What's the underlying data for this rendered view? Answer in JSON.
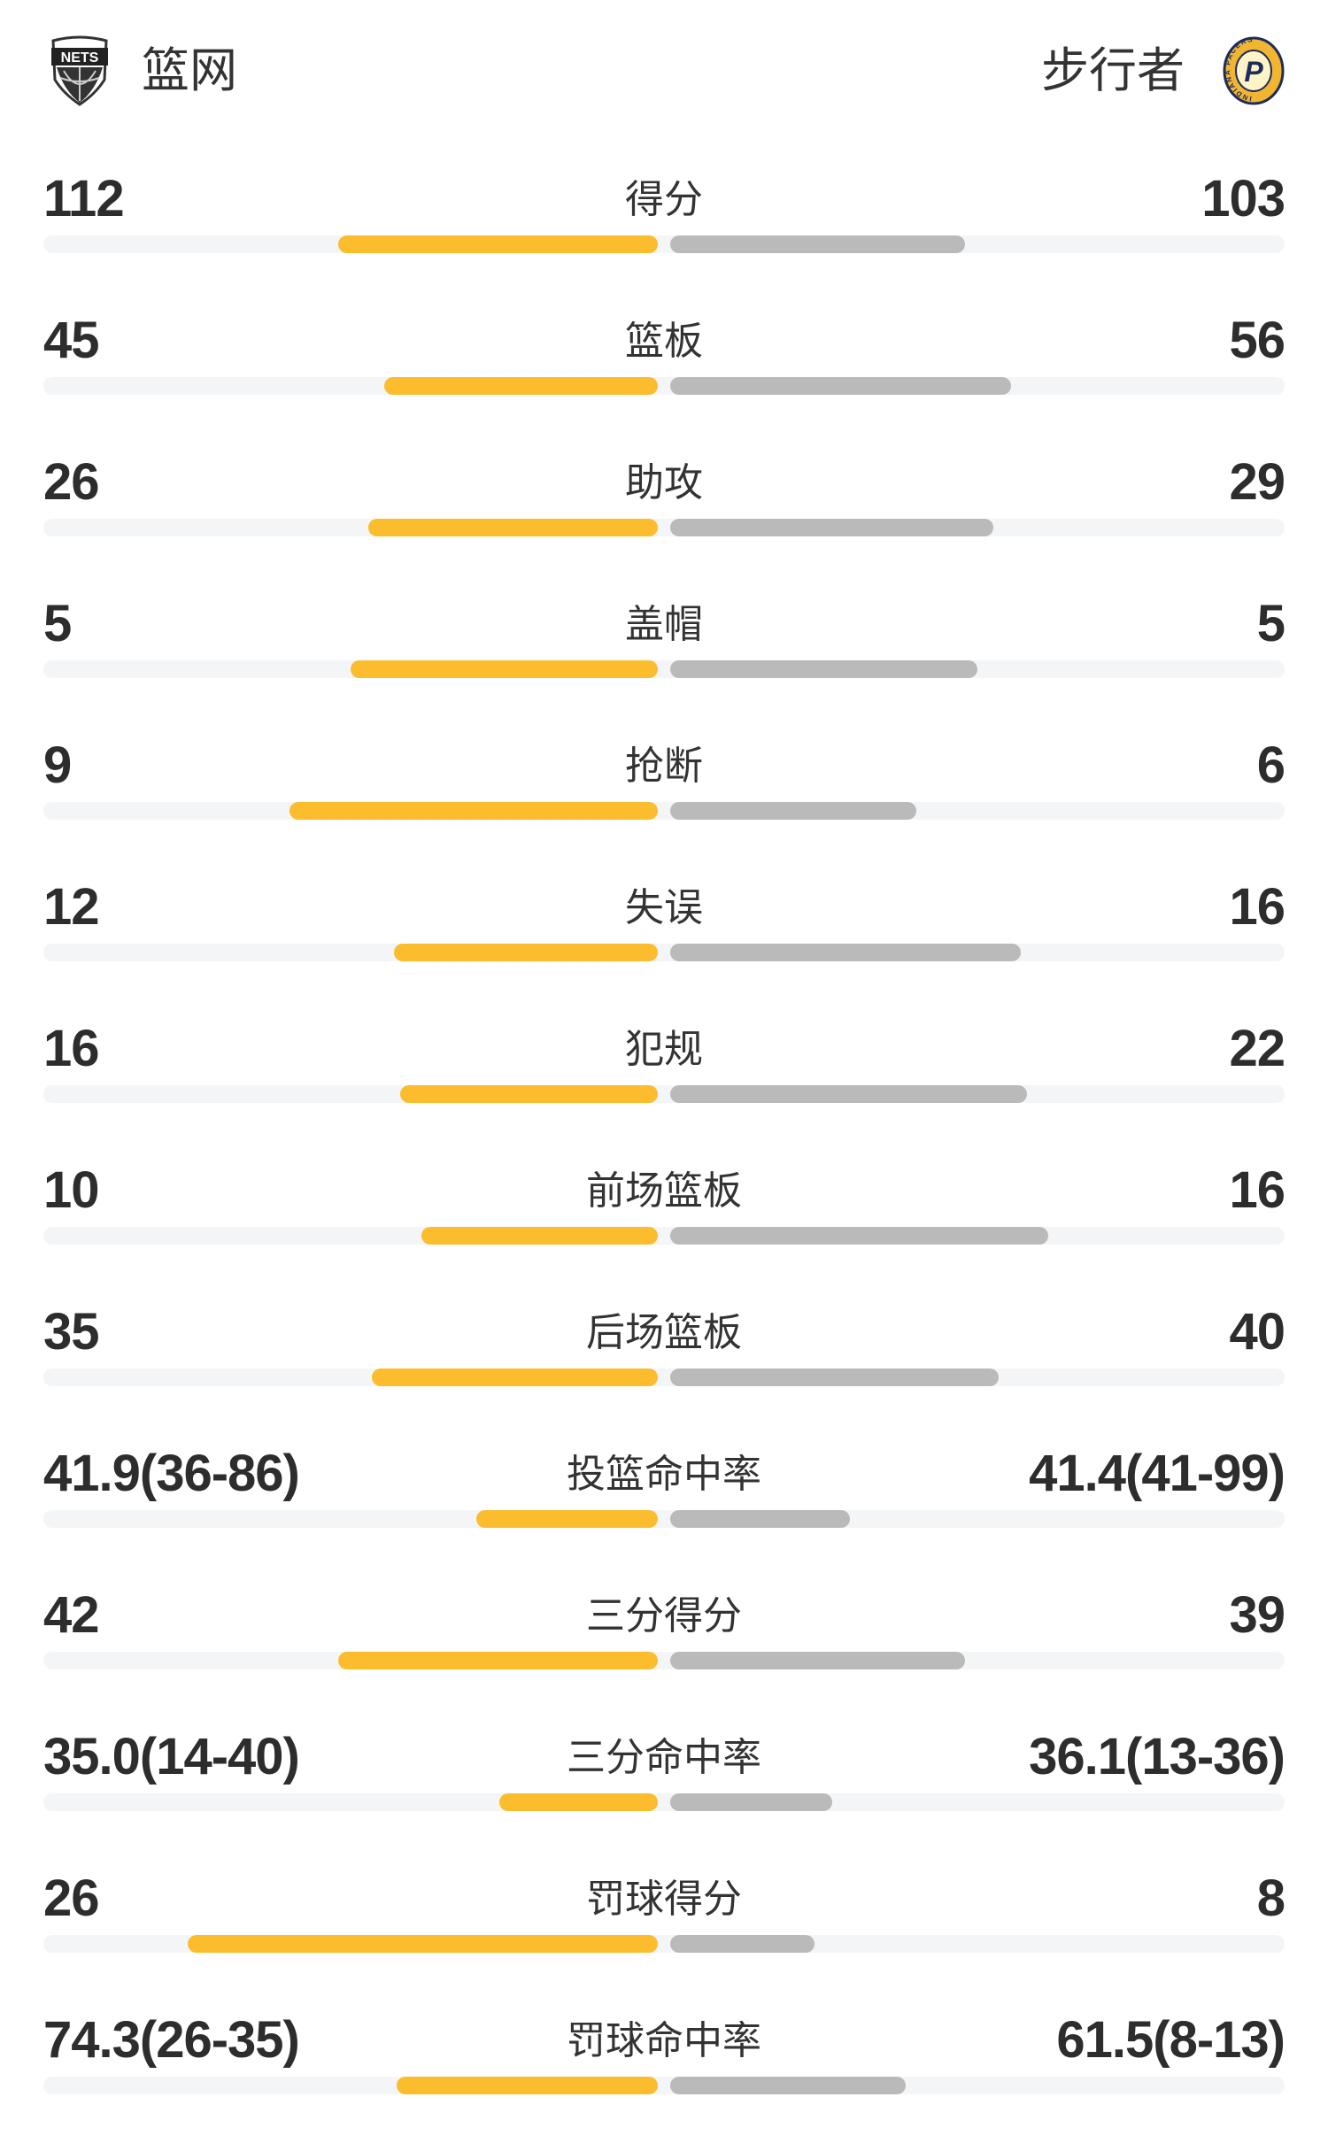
{
  "header": {
    "home_team": "篮网",
    "away_team": "步行者",
    "home_logo_text": "NETS",
    "away_logo_text": "INDIANA PACERS"
  },
  "colors": {
    "home_bar": "#fbbd2e",
    "away_bar": "#bababa",
    "track": "#f4f5f7"
  },
  "stats": [
    {
      "label": "得分",
      "home": "112",
      "away": "103",
      "home_fill": 0.52,
      "away_fill": 0.48
    },
    {
      "label": "篮板",
      "home": "45",
      "away": "56",
      "home_fill": 0.445,
      "away_fill": 0.555
    },
    {
      "label": "助攻",
      "home": "26",
      "away": "29",
      "home_fill": 0.471,
      "away_fill": 0.526
    },
    {
      "label": "盖帽",
      "home": "5",
      "away": "5",
      "home_fill": 0.5,
      "away_fill": 0.5
    },
    {
      "label": "抢断",
      "home": "9",
      "away": "6",
      "home_fill": 0.6,
      "away_fill": 0.4
    },
    {
      "label": "失误",
      "home": "12",
      "away": "16",
      "home_fill": 0.43,
      "away_fill": 0.57
    },
    {
      "label": "犯规",
      "home": "16",
      "away": "22",
      "home_fill": 0.42,
      "away_fill": 0.58
    },
    {
      "label": "前场篮板",
      "home": "10",
      "away": "16",
      "home_fill": 0.385,
      "away_fill": 0.615
    },
    {
      "label": "后场篮板",
      "home": "35",
      "away": "40",
      "home_fill": 0.465,
      "away_fill": 0.535
    },
    {
      "label": "投篮命中率",
      "home": "41.9(36-86)",
      "away": "41.4(41-99)",
      "home_fill": 0.295,
      "away_fill": 0.293
    },
    {
      "label": "三分得分",
      "home": "42",
      "away": "39",
      "home_fill": 0.52,
      "away_fill": 0.48
    },
    {
      "label": "三分命中率",
      "home": "35.0(14-40)",
      "away": "36.1(13-36)",
      "home_fill": 0.258,
      "away_fill": 0.264
    },
    {
      "label": "罚球得分",
      "home": "26",
      "away": "8",
      "home_fill": 0.765,
      "away_fill": 0.235
    },
    {
      "label": "罚球命中率",
      "home": "74.3(26-35)",
      "away": "61.5(8-13)",
      "home_fill": 0.425,
      "away_fill": 0.383
    }
  ]
}
